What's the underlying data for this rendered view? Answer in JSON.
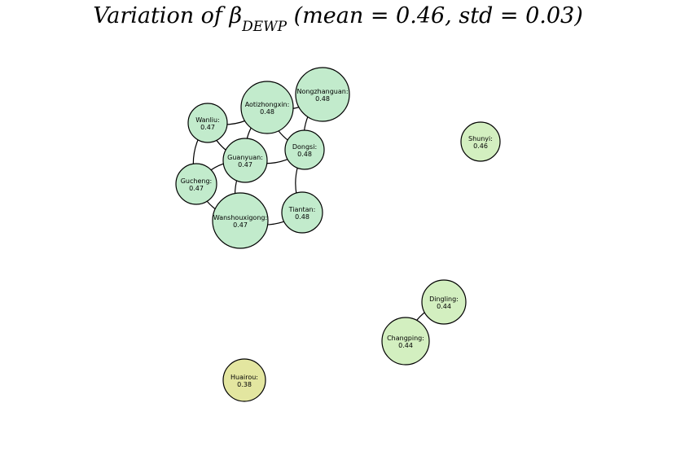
{
  "title": {
    "prefix": "Variation of β",
    "subscript": "DEWP",
    "suffix": "(mean = 0.46,  std = 0.03)"
  },
  "colors": {
    "high": "#c2ebcc",
    "mid": "#d3efc0",
    "low": "#e3e6a0",
    "stroke": "#000000",
    "edge": "#000000"
  },
  "nodes": [
    {
      "id": "nongzhanguan",
      "label": "Nongzhanguan:",
      "value": "0.48"
    },
    {
      "id": "aotizhongxin",
      "label": "Aotizhongxin:",
      "value": "0.48"
    },
    {
      "id": "wanliu",
      "label": "Wanliu:",
      "value": "0.47"
    },
    {
      "id": "dongsi",
      "label": "Dongsi:",
      "value": "0.48"
    },
    {
      "id": "guanyuan",
      "label": "Guanyuan:",
      "value": "0.47"
    },
    {
      "id": "gucheng",
      "label": "Gucheng:",
      "value": "0.47"
    },
    {
      "id": "tiantan",
      "label": "Tiantan:",
      "value": "0.48"
    },
    {
      "id": "wanshouxigong",
      "label": "Wanshouxigong:",
      "value": "0.47"
    },
    {
      "id": "shunyi",
      "label": "Shunyi:",
      "value": "0.46"
    },
    {
      "id": "dingling",
      "label": "Dingling:",
      "value": "0.44"
    },
    {
      "id": "changping",
      "label": "Changping:",
      "value": "0.44"
    },
    {
      "id": "huairou",
      "label": "Huairou:",
      "value": "0.38"
    }
  ],
  "edges": [
    [
      "wanliu",
      "aotizhongxin"
    ],
    [
      "wanliu",
      "guanyuan"
    ],
    [
      "wanliu",
      "gucheng"
    ],
    [
      "aotizhongxin",
      "nongzhanguan"
    ],
    [
      "aotizhongxin",
      "guanyuan"
    ],
    [
      "aotizhongxin",
      "dongsi"
    ],
    [
      "nongzhanguan",
      "dongsi"
    ],
    [
      "guanyuan",
      "dongsi"
    ],
    [
      "guanyuan",
      "gucheng"
    ],
    [
      "gucheng",
      "wanshouxigong"
    ],
    [
      "guanyuan",
      "wanshouxigong"
    ],
    [
      "dongsi",
      "tiantan"
    ],
    [
      "wanshouxigong",
      "tiantan"
    ],
    [
      "dingling",
      "changping"
    ]
  ]
}
